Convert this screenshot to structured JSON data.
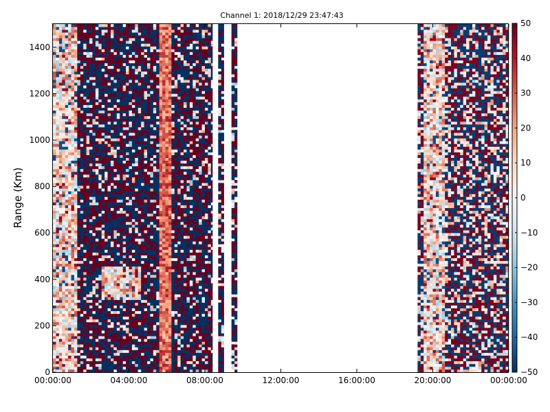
{
  "chart_data": {
    "type": "heatmap",
    "title": "Channel 1: 2018/12/29 23:47:43",
    "xlabel": "",
    "ylabel": "Range (Km)",
    "x_ticks": [
      "00:00:00",
      "04:00:00",
      "08:00:00",
      "12:00:00",
      "16:00:00",
      "20:00:00",
      "00:00:00"
    ],
    "x_range_hours": [
      0,
      24
    ],
    "y_ticks": [
      0,
      200,
      400,
      600,
      800,
      1000,
      1200,
      1400
    ],
    "ylim": [
      0,
      1500
    ],
    "colorbar": {
      "colormap": "RdBu_r",
      "range": [
        -50,
        50
      ],
      "ticks": [
        50,
        40,
        30,
        20,
        10,
        0,
        -10,
        -20,
        -30,
        -40,
        -50
      ]
    },
    "data_segments_hours": [
      [
        0,
        8.4
      ],
      [
        8.7,
        9.0
      ],
      [
        9.4,
        9.7
      ],
      [
        19.2,
        24
      ]
    ],
    "grid": false,
    "colors": {
      "high": "#67001f",
      "mid": "#f7f7f7",
      "low": "#053061"
    }
  }
}
